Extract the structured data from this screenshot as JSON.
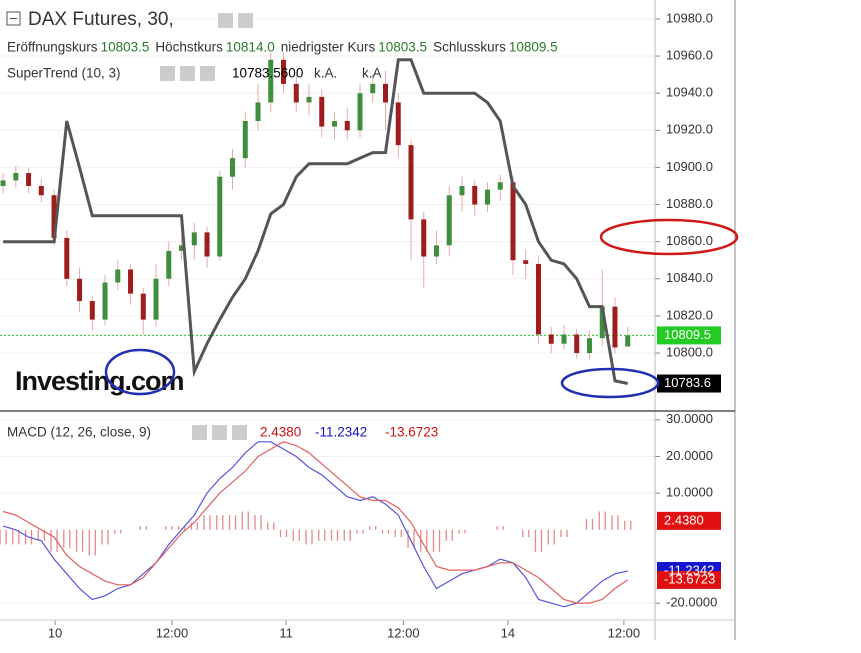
{
  "chart_data": [
    {
      "type": "candlestick",
      "title": "DAX Futures, 30,",
      "ohlc_header": [
        {
          "label": "Eröffnungskurs",
          "value": "10803.5"
        },
        {
          "label": "Höchstkurs",
          "value": "10814.0"
        },
        {
          "label": "niedrigster Kurs",
          "value": "10803.5"
        },
        {
          "label": "Schlusskurs",
          "value": "10809.5"
        }
      ],
      "indicator_header": {
        "name": "SuperTrend (10, 3)",
        "value": "10783.5600",
        "extra": [
          "k.A.",
          "k.A"
        ]
      },
      "watermark": "Investing.com",
      "up_color": "#3e8e3e",
      "down_color": "#9e1c1c",
      "xlim": [
        -0.24,
        51.14
      ],
      "ylim": [
        10769.3,
        10990.2
      ],
      "yticks": [
        {
          "value": 10800,
          "label": "10800.0"
        },
        {
          "value": 10820,
          "label": "10820.0"
        },
        {
          "value": 10840,
          "label": "10840.0"
        },
        {
          "value": 10860,
          "label": "10860.0"
        },
        {
          "value": 10880,
          "label": "10880.0"
        },
        {
          "value": 10900,
          "label": "10900.0"
        },
        {
          "value": 10920,
          "label": "10920.0"
        },
        {
          "value": 10940,
          "label": "10940.0"
        },
        {
          "value": 10960,
          "label": "10960.0"
        },
        {
          "value": 10980,
          "label": "10980.0"
        }
      ],
      "open": [
        10890,
        10893,
        10897,
        10890,
        10885,
        10862,
        10840,
        10828,
        10818,
        10838,
        10845,
        10832,
        10818,
        10840,
        10855,
        10858,
        10865,
        10852,
        10895,
        10905,
        10925,
        10935,
        10958,
        10945,
        10935,
        10938,
        10922,
        10925,
        10920,
        10940,
        10945,
        10935,
        10912,
        10872,
        10852,
        10858,
        10885,
        10890,
        10880,
        10888,
        10892,
        10850,
        10848,
        10810,
        10805,
        10810,
        10800,
        10808,
        10825,
        10803.5
      ],
      "high": [
        10897,
        10901,
        10900,
        10894,
        10888,
        10866,
        10846,
        10831,
        10842,
        10850,
        10848,
        10835,
        10848,
        10860,
        10864,
        10870,
        10868,
        10898,
        10910,
        10930,
        10945,
        10962,
        10962,
        10950,
        10945,
        10942,
        10930,
        10932,
        10945,
        10950,
        10952,
        10940,
        10915,
        10876,
        10866,
        10890,
        10895,
        10893,
        10892,
        10896,
        10895,
        10856,
        10852,
        10814,
        10815,
        10813,
        10812,
        10845,
        10830,
        10814
      ],
      "low": [
        10886,
        10889,
        10886,
        10881,
        10858,
        10836,
        10822,
        10812,
        10815,
        10834,
        10826,
        10810,
        10814,
        10836,
        10850,
        10850,
        10846,
        10850,
        10888,
        10900,
        10920,
        10930,
        10940,
        10930,
        10928,
        10916,
        10915,
        10915,
        10916,
        10935,
        10920,
        10905,
        10850,
        10835,
        10848,
        10852,
        10876,
        10874,
        10876,
        10882,
        10842,
        10840,
        10805,
        10800,
        10802,
        10797,
        10796,
        10804,
        10800,
        10803.5
      ],
      "close": [
        10893,
        10897,
        10890,
        10885,
        10862,
        10840,
        10828,
        10818,
        10838,
        10845,
        10832,
        10818,
        10840,
        10855,
        10858,
        10865,
        10852,
        10895,
        10905,
        10925,
        10935,
        10958,
        10945,
        10935,
        10938,
        10922,
        10925,
        10920,
        10940,
        10945,
        10935,
        10912,
        10872,
        10852,
        10858,
        10885,
        10890,
        10880,
        10888,
        10892,
        10850,
        10848,
        10810,
        10805,
        10810,
        10800,
        10808,
        10825,
        10803,
        10809.5
      ],
      "last_label": "10809.5",
      "last_color": "#22cc22",
      "series": [
        {
          "name": "SuperTrend",
          "color": "#555555",
          "last_label": "10783.6",
          "values": [
            10860,
            10860,
            10860,
            10860,
            10860,
            10925,
            10900,
            10874,
            10874,
            10874,
            10874,
            10874,
            10874,
            10874,
            10874,
            10790,
            10805,
            10818,
            10830,
            10840,
            10855,
            10875,
            10880,
            10895,
            10902,
            10902,
            10902,
            10902,
            10905,
            10908,
            10908,
            10958,
            10958,
            10940,
            10940,
            10940,
            10940,
            10940,
            10935,
            10925,
            10890,
            10880,
            10860,
            10850,
            10848,
            10840,
            10825,
            10825,
            10785,
            10783.56
          ]
        }
      ]
    },
    {
      "type": "macd",
      "title": "MACD (12, 26, close, 9)",
      "xlim": [
        -0.24,
        51.14
      ],
      "ylim": [
        -24.6,
        32.4
      ],
      "yticks": [
        {
          "value": -20,
          "label": "-20.0000"
        },
        {
          "value": 10,
          "label": "10.0000"
        },
        {
          "value": 20,
          "label": "20.0000"
        },
        {
          "value": 30,
          "label": "30.0000"
        }
      ],
      "xticks": [
        {
          "value": 4.08,
          "label": "10"
        },
        {
          "value": 13.25,
          "label": "12:00"
        },
        {
          "value": 22.2,
          "label": "11"
        },
        {
          "value": 31.4,
          "label": "12:00"
        },
        {
          "value": 39.6,
          "label": "14"
        },
        {
          "value": 48.7,
          "label": "12:00"
        }
      ],
      "histogram": {
        "color": "#e8888a",
        "last_label": "2.4380",
        "tag_color": "#e01010",
        "values": [
          -4,
          -4,
          -4,
          -3,
          -6,
          -5,
          -6,
          -7,
          -4,
          -1,
          0,
          1,
          0,
          1,
          1,
          2,
          4,
          4,
          4,
          5,
          4,
          2,
          -2,
          -3,
          -4,
          -3,
          -3,
          -3,
          -1,
          1,
          -1,
          -2,
          -5,
          -6,
          -6,
          -3,
          -1,
          0,
          0,
          1,
          0,
          -2,
          -6,
          -4,
          -2,
          0,
          3,
          5,
          4,
          2.438
        ]
      },
      "series": [
        {
          "name": "MACD",
          "color": "#5555dd",
          "last_label": "-11.2342",
          "tag_color": "#1515d0",
          "values": [
            1,
            0,
            -2,
            -3,
            -8,
            -12,
            -16,
            -19,
            -18,
            -16,
            -15,
            -12,
            -9,
            -4,
            0,
            4,
            10,
            14,
            17,
            21,
            24,
            24,
            22,
            20,
            17,
            15,
            12,
            9,
            8,
            9,
            7,
            4,
            -3,
            -10,
            -16,
            -14,
            -12,
            -11,
            -10,
            -8,
            -9,
            -13,
            -19,
            -20,
            -21,
            -20,
            -17,
            -14,
            -12,
            -11.2342
          ]
        },
        {
          "name": "Signal",
          "color": "#e06060",
          "last_label": "-13.6723",
          "tag_color": "#e01010",
          "values": [
            5,
            4,
            2,
            0,
            -2,
            -7,
            -10,
            -12,
            -14,
            -15,
            -15,
            -13,
            -9,
            -5,
            -1,
            2,
            6,
            10,
            13,
            16,
            20,
            22,
            24,
            23,
            21,
            18,
            15,
            12,
            9,
            8,
            8,
            6,
            2,
            -4,
            -10,
            -11,
            -11,
            -11,
            -10,
            -9,
            -9,
            -11,
            -13,
            -16,
            -19,
            -20,
            -20,
            -19,
            -16,
            -13.6723
          ]
        }
      ]
    }
  ]
}
